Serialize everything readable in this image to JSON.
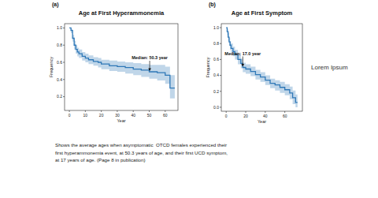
{
  "chart_data": [
    {
      "type": "line",
      "panel": "(a)",
      "title": "Age at First Hyperammonemia",
      "x_label": "Year",
      "y_label": "Frequency",
      "xlim": [
        -3,
        68
      ],
      "ylim": [
        0.04,
        1.05
      ],
      "xticks": [
        0,
        10,
        20,
        30,
        40,
        50,
        60
      ],
      "yticks": [
        0.2,
        0.4,
        0.6,
        0.8,
        {
          "value": 1.0,
          "label": "1.0"
        }
      ],
      "line_style": "step",
      "grid": false,
      "x": [
        0,
        1,
        2,
        3,
        4,
        5,
        6,
        8,
        10,
        12,
        15,
        18,
        20,
        25,
        30,
        35,
        40,
        45,
        50,
        55,
        60,
        63,
        66
      ],
      "series": [
        {
          "color": "#2f78b7",
          "values": [
            1.0,
            0.97,
            0.88,
            0.8,
            0.75,
            0.72,
            0.7,
            0.67,
            0.65,
            0.63,
            0.61,
            0.6,
            0.58,
            0.56,
            0.55,
            0.54,
            0.52,
            0.51,
            0.49,
            0.48,
            0.45,
            0.3,
            0.3
          ],
          "lower": [
            1.0,
            0.94,
            0.84,
            0.75,
            0.7,
            0.67,
            0.65,
            0.62,
            0.6,
            0.58,
            0.56,
            0.54,
            0.52,
            0.5,
            0.49,
            0.47,
            0.45,
            0.43,
            0.41,
            0.39,
            0.35,
            0.18,
            0.18
          ],
          "upper": [
            1.0,
            0.99,
            0.92,
            0.85,
            0.8,
            0.77,
            0.75,
            0.72,
            0.7,
            0.68,
            0.66,
            0.65,
            0.63,
            0.62,
            0.61,
            0.6,
            0.59,
            0.58,
            0.57,
            0.57,
            0.55,
            0.45,
            0.45
          ]
        }
      ],
      "annotations": [
        {
          "text": "Median: 50.3 year",
          "x": 50.3,
          "y": 0.49
        }
      ]
    },
    {
      "type": "line",
      "panel": "(b)",
      "title": "Age at First Symptom",
      "x_label": "Year",
      "y_label": "Frequency",
      "xlim": [
        -5,
        78
      ],
      "ylim": [
        -0.05,
        1.05
      ],
      "xticks": [
        0,
        20,
        40,
        60
      ],
      "yticks": [
        {
          "value": 0,
          "label": "0.0"
        },
        0.2,
        0.4,
        0.6,
        0.8,
        {
          "value": 1.0,
          "label": "1.0"
        }
      ],
      "line_style": "step",
      "grid": false,
      "x": [
        0,
        1,
        2,
        3,
        4,
        5,
        7,
        9,
        12,
        15,
        17,
        20,
        25,
        30,
        35,
        40,
        45,
        50,
        55,
        60,
        65,
        68,
        71,
        73
      ],
      "series": [
        {
          "color": "#2f78b7",
          "values": [
            1.0,
            0.95,
            0.88,
            0.82,
            0.78,
            0.74,
            0.7,
            0.66,
            0.6,
            0.55,
            0.5,
            0.48,
            0.45,
            0.41,
            0.38,
            0.34,
            0.3,
            0.28,
            0.25,
            0.22,
            0.18,
            0.12,
            0.06,
            0.06
          ],
          "lower": [
            1.0,
            0.91,
            0.83,
            0.77,
            0.72,
            0.68,
            0.64,
            0.6,
            0.54,
            0.49,
            0.44,
            0.42,
            0.39,
            0.35,
            0.32,
            0.28,
            0.24,
            0.21,
            0.18,
            0.15,
            0.1,
            0.04,
            0.0,
            0.0
          ],
          "upper": [
            1.0,
            0.98,
            0.93,
            0.87,
            0.83,
            0.8,
            0.76,
            0.72,
            0.66,
            0.61,
            0.56,
            0.54,
            0.51,
            0.47,
            0.44,
            0.4,
            0.36,
            0.34,
            0.32,
            0.29,
            0.26,
            0.21,
            0.16,
            0.16
          ]
        }
      ],
      "annotations": [
        {
          "text": "Median: 17.0 year",
          "x": 17.0,
          "y": 0.5
        }
      ]
    }
  ],
  "side_text": "Lorem Ipsum",
  "caption": [
    "Shows the average ages when asymptomatic  OTCD females experienced their",
    "first hyperammonemia event, at 50.3 years of age, and their first UCD symptom,",
    "at 17 years of age. (Page 8 in publication)"
  ]
}
